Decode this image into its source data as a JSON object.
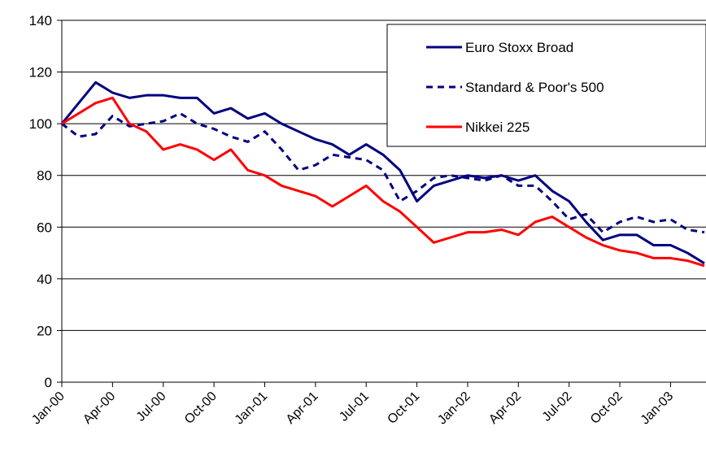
{
  "chart_data": {
    "type": "line",
    "categories": [
      "Jan-00",
      null,
      null,
      "Apr-00",
      null,
      null,
      "Jul-00",
      null,
      null,
      "Oct-00",
      null,
      null,
      "Jan-01",
      null,
      null,
      "Apr-01",
      null,
      null,
      "Jul-01",
      null,
      null,
      "Oct-01",
      null,
      null,
      "Jan-02",
      null,
      null,
      "Apr-02",
      null,
      null,
      "Jul-02",
      null,
      null,
      "Oct-02",
      null,
      null,
      "Jan-03",
      null,
      null
    ],
    "series": [
      {
        "name": "Euro Stoxx Broad",
        "color": "#000080",
        "linestyle": "solid",
        "values": [
          100,
          108,
          116,
          112,
          110,
          111,
          111,
          110,
          110,
          104,
          106,
          102,
          104,
          100,
          97,
          94,
          92,
          88,
          92,
          88,
          82,
          70,
          76,
          78,
          80,
          79,
          80,
          78,
          80,
          74,
          70,
          62,
          55,
          57,
          57,
          53,
          53,
          50,
          46
        ]
      },
      {
        "name": "Standard & Poor's 500",
        "color": "#000080",
        "linestyle": "dashed",
        "values": [
          100,
          95,
          96,
          103,
          99,
          100,
          101,
          104,
          100,
          98,
          95,
          93,
          97,
          90,
          82,
          84,
          88,
          87,
          86,
          82,
          70,
          74,
          79,
          80,
          79,
          78,
          80,
          76,
          76,
          70,
          63,
          65,
          58,
          62,
          64,
          62,
          63,
          59,
          58
        ]
      },
      {
        "name": "Nikkei 225",
        "color": "#ff0000",
        "linestyle": "solid",
        "values": [
          100,
          104,
          108,
          110,
          100,
          97,
          90,
          92,
          90,
          86,
          90,
          82,
          80,
          76,
          74,
          72,
          68,
          72,
          76,
          70,
          66,
          60,
          54,
          56,
          58,
          58,
          59,
          57,
          62,
          64,
          60,
          56,
          53,
          51,
          50,
          48,
          48,
          47,
          45
        ]
      }
    ],
    "ylim": [
      0,
      140
    ],
    "yticks": [
      0,
      20,
      40,
      60,
      80,
      100,
      120,
      140
    ],
    "grid": true,
    "legend": "upper right"
  }
}
